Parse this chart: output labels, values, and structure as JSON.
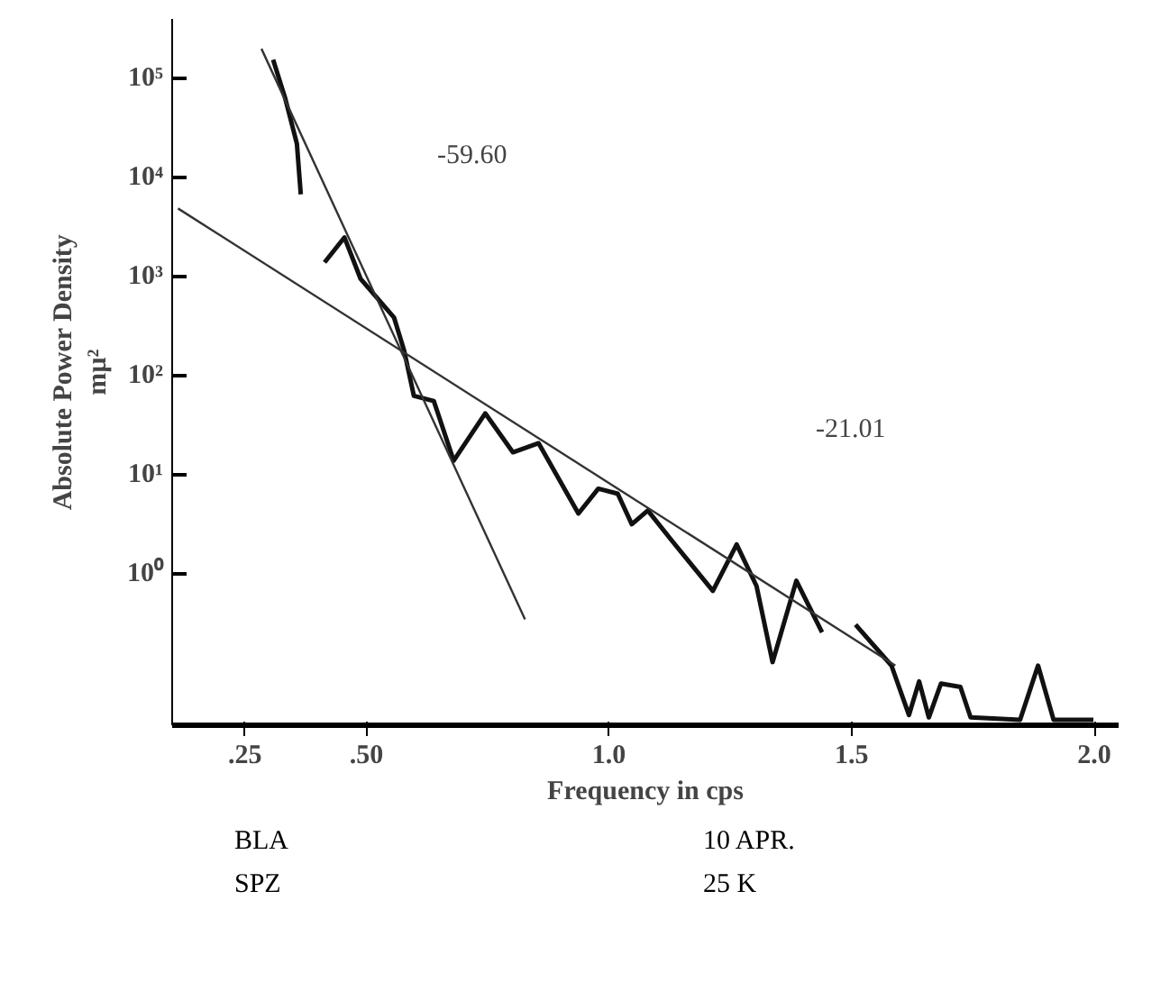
{
  "chart_data": {
    "type": "line",
    "xlabel": "Frequency in cps",
    "ylabel": "Absolute Power Density\nmµ²",
    "log": "y",
    "grid": false,
    "marker": "none",
    "line_style": "solid",
    "xlim": [
      0.1,
      2.05
    ],
    "ylim": [
      0.03,
      400000
    ],
    "xticks": [
      {
        "value": 0.25,
        "label": ".25"
      },
      {
        "value": 0.5,
        "label": ".50"
      },
      {
        "value": 1.0,
        "label": "1.0"
      },
      {
        "value": 1.5,
        "label": "1.5"
      },
      {
        "value": 2.0,
        "label": "2.0"
      }
    ],
    "yticks": [
      {
        "value": 1,
        "label": "10⁰"
      },
      {
        "value": 10,
        "label": "10¹"
      },
      {
        "value": 100,
        "label": "10²"
      },
      {
        "value": 1000,
        "label": "10³"
      },
      {
        "value": 10000,
        "label": "10⁴"
      },
      {
        "value": 100000,
        "label": "10⁵"
      }
    ],
    "series": [
      {
        "color": "#111111",
        "x": [
          0.308,
          0.333,
          0.357,
          0.365,
          0.39,
          0.414,
          0.455,
          0.488,
          0.557,
          0.578,
          0.598,
          0.639,
          0.68,
          0.745,
          0.802,
          0.855,
          0.937,
          0.978,
          1.018,
          1.047,
          1.08,
          1.129,
          1.214,
          1.263,
          1.304,
          1.337,
          1.386,
          1.439,
          1.47,
          1.508,
          1.582,
          1.618,
          1.639,
          1.659,
          1.684,
          1.724,
          1.745,
          1.847,
          1.884,
          1.916,
          1.998
        ],
        "values": [
          155000,
          63000,
          22000,
          6800,
          null,
          1400,
          2500,
          960,
          390,
          180,
          63,
          56,
          14,
          42,
          17,
          21,
          4.1,
          7.3,
          6.5,
          3.2,
          4.4,
          2.2,
          0.68,
          2.0,
          0.76,
          0.13,
          0.86,
          0.26,
          null,
          0.31,
          0.12,
          0.038,
          0.083,
          0.036,
          0.079,
          0.073,
          0.036,
          0.034,
          0.12,
          0.034,
          0.034
        ]
      },
      {
        "color": "#333333",
        "x": [
          0.284,
          0.827
        ],
        "values": [
          200000,
          0.35
        ]
      },
      {
        "color": "#333333",
        "x": [
          0.112,
          1.59
        ],
        "values": [
          4900,
          0.12
        ]
      }
    ],
    "annotations": [
      "-59.60",
      "-21.01",
      "BLA",
      "SPZ",
      "10 APR.",
      "25 K"
    ]
  }
}
